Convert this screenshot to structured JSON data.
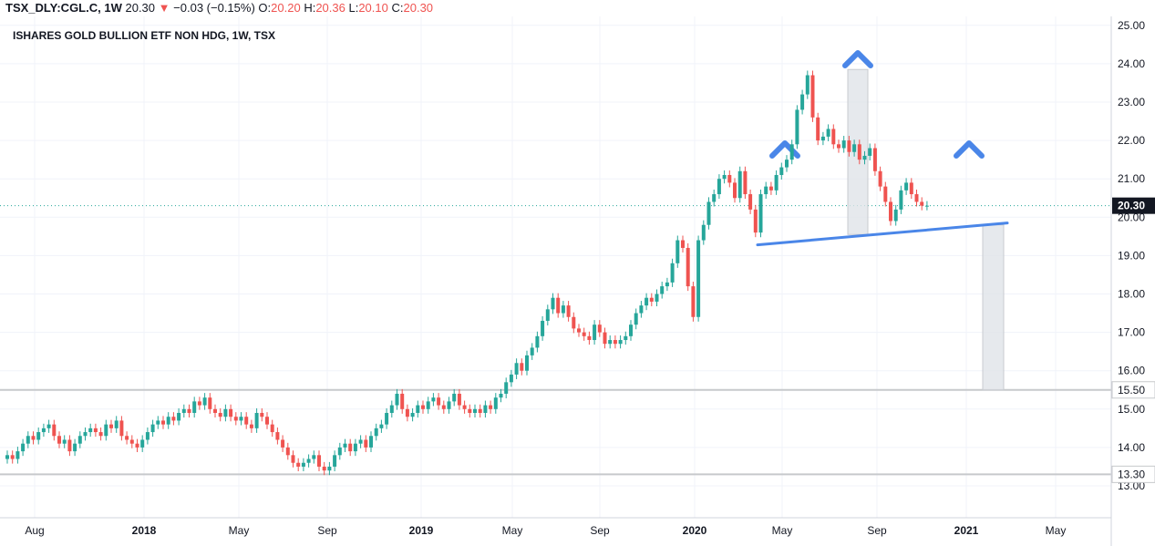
{
  "header": {
    "symbol": "TSX_DLY:CGL.C, 1W",
    "last": "20.30",
    "change": "−0.03 (−0.15%)",
    "open_label": "O:",
    "open": "20.20",
    "high_label": "H:",
    "high": "20.36",
    "low_label": "L:",
    "low": "20.10",
    "close_label": "C:",
    "close": "20.30",
    "down_arrow": "▼"
  },
  "colors": {
    "up": "#26a69a",
    "down": "#ef5350",
    "trendline": "#4a86e8",
    "level_line": "#c7c9cc",
    "box": "#e0e3e8",
    "price_label_bg": "#131722"
  },
  "chart_data": {
    "type": "candlestick",
    "title": "ISHARES GOLD BULLION ETF NON HDG, 1W, TSX",
    "ylim": [
      12.5,
      25.3
    ],
    "y_ticks": [
      "13.00",
      "14.00",
      "15.00",
      "16.00",
      "17.00",
      "18.00",
      "19.00",
      "20.00",
      "21.00",
      "22.00",
      "23.00",
      "24.00",
      "25.00"
    ],
    "x_ticks": [
      {
        "label": "Aug",
        "bold": false
      },
      {
        "label": "2018",
        "bold": true
      },
      {
        "label": "May",
        "bold": false
      },
      {
        "label": "Sep",
        "bold": false
      },
      {
        "label": "2019",
        "bold": true
      },
      {
        "label": "May",
        "bold": false
      },
      {
        "label": "Sep",
        "bold": false
      },
      {
        "label": "2020",
        "bold": true
      },
      {
        "label": "May",
        "bold": false
      },
      {
        "label": "Sep",
        "bold": false
      },
      {
        "label": "2021",
        "bold": true
      },
      {
        "label": "May",
        "bold": false
      }
    ],
    "closes": [
      13.8,
      13.7,
      13.9,
      14.1,
      14.3,
      14.2,
      14.4,
      14.5,
      14.6,
      14.3,
      14.1,
      14.2,
      13.9,
      14.1,
      14.3,
      14.4,
      14.5,
      14.4,
      14.3,
      14.6,
      14.5,
      14.7,
      14.3,
      14.2,
      14.1,
      14.0,
      14.2,
      14.4,
      14.6,
      14.7,
      14.6,
      14.8,
      14.7,
      14.9,
      15.0,
      14.9,
      15.2,
      15.1,
      15.3,
      15.0,
      14.9,
      14.8,
      15.0,
      14.8,
      14.7,
      14.8,
      14.6,
      14.5,
      14.9,
      14.8,
      14.6,
      14.4,
      14.2,
      14.0,
      13.8,
      13.6,
      13.5,
      13.6,
      13.7,
      13.8,
      13.5,
      13.4,
      13.5,
      13.8,
      14.0,
      14.1,
      13.9,
      14.1,
      14.2,
      14.0,
      14.3,
      14.5,
      14.6,
      14.9,
      15.1,
      15.4,
      15.0,
      14.8,
      14.9,
      15.1,
      15.0,
      15.2,
      15.3,
      15.1,
      15.0,
      15.2,
      15.4,
      15.1,
      15.0,
      14.9,
      15.0,
      14.9,
      15.1,
      15.0,
      15.3,
      15.4,
      15.7,
      15.9,
      16.2,
      16.0,
      16.4,
      16.6,
      16.9,
      17.3,
      17.6,
      17.9,
      17.5,
      17.7,
      17.4,
      17.1,
      17.0,
      16.9,
      16.8,
      17.2,
      17.0,
      16.7,
      16.8,
      16.7,
      16.8,
      16.9,
      17.2,
      17.5,
      17.7,
      17.9,
      17.8,
      18.0,
      18.2,
      18.3,
      18.8,
      19.4,
      19.2,
      18.2,
      17.4,
      19.4,
      19.8,
      20.4,
      20.6,
      21.0,
      21.1,
      20.9,
      20.5,
      21.2,
      20.6,
      20.2,
      19.6,
      20.6,
      20.8,
      20.7,
      21.1,
      21.3,
      21.5,
      21.9,
      22.8,
      23.2,
      23.7,
      22.6,
      22.0,
      22.1,
      22.3,
      21.9,
      21.8,
      22.0,
      21.7,
      21.9,
      21.5,
      21.6,
      21.8,
      21.2,
      20.8,
      20.4,
      19.9,
      20.2,
      20.7,
      20.9,
      20.6,
      20.4,
      20.3,
      20.3
    ],
    "price_lines": [
      "15.50",
      "13.30"
    ],
    "current_price": "20.30"
  }
}
